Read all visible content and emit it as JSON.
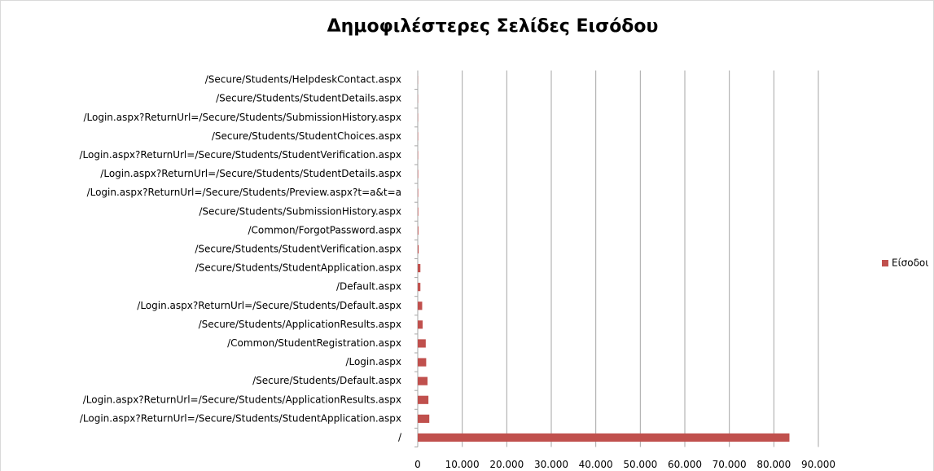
{
  "chart_data": {
    "type": "bar",
    "orientation": "horizontal",
    "title": "Δημοφιλέστερες Σελίδες Εισόδου",
    "categories": [
      "/",
      "/Login.aspx?ReturnUrl=/Secure/Students/StudentApplication.aspx",
      "/Login.aspx?ReturnUrl=/Secure/Students/ApplicationResults.aspx",
      "/Secure/Students/Default.aspx",
      "/Login.aspx",
      "/Common/StudentRegistration.aspx",
      "/Secure/Students/ApplicationResults.aspx",
      "/Login.aspx?ReturnUrl=/Secure/Students/Default.aspx",
      "/Default.aspx",
      "/Secure/Students/StudentApplication.aspx",
      "/Secure/Students/StudentVerification.aspx",
      "/Common/ForgotPassword.aspx",
      "/Secure/Students/SubmissionHistory.aspx",
      "/Login.aspx?ReturnUrl=/Secure/Students/Preview.aspx?t=a&t=a",
      "/Login.aspx?ReturnUrl=/Secure/Students/StudentDetails.aspx",
      "/Login.aspx?ReturnUrl=/Secure/Students/StudentVerification.aspx",
      "/Secure/Students/StudentChoices.aspx",
      "/Login.aspx?ReturnUrl=/Secure/Students/SubmissionHistory.aspx",
      "/Secure/Students/StudentDetails.aspx",
      "/Secure/Students/HelpdeskContact.aspx"
    ],
    "series": [
      {
        "name": "Είσοδοι",
        "color": "#c0504d",
        "values": [
          83500,
          2600,
          2400,
          2200,
          1900,
          1800,
          1100,
          1000,
          600,
          600,
          200,
          150,
          120,
          100,
          100,
          80,
          80,
          60,
          50,
          40
        ]
      }
    ],
    "xlim": [
      0,
      90000
    ],
    "xticks": [
      0,
      {
        "value": 10000,
        "label": "10.000"
      },
      {
        "value": 20000,
        "label": "20.000"
      },
      {
        "value": 30000,
        "label": "30.000"
      },
      {
        "value": 40000,
        "label": "40.000"
      },
      {
        "value": 50000,
        "label": "50.000"
      },
      {
        "value": 60000,
        "label": "60.000"
      },
      {
        "value": 70000,
        "label": "70.000"
      },
      {
        "value": 80000,
        "label": "80.000"
      },
      {
        "value": 90000,
        "label": "90.000"
      }
    ],
    "grid": true,
    "legend": "right"
  }
}
